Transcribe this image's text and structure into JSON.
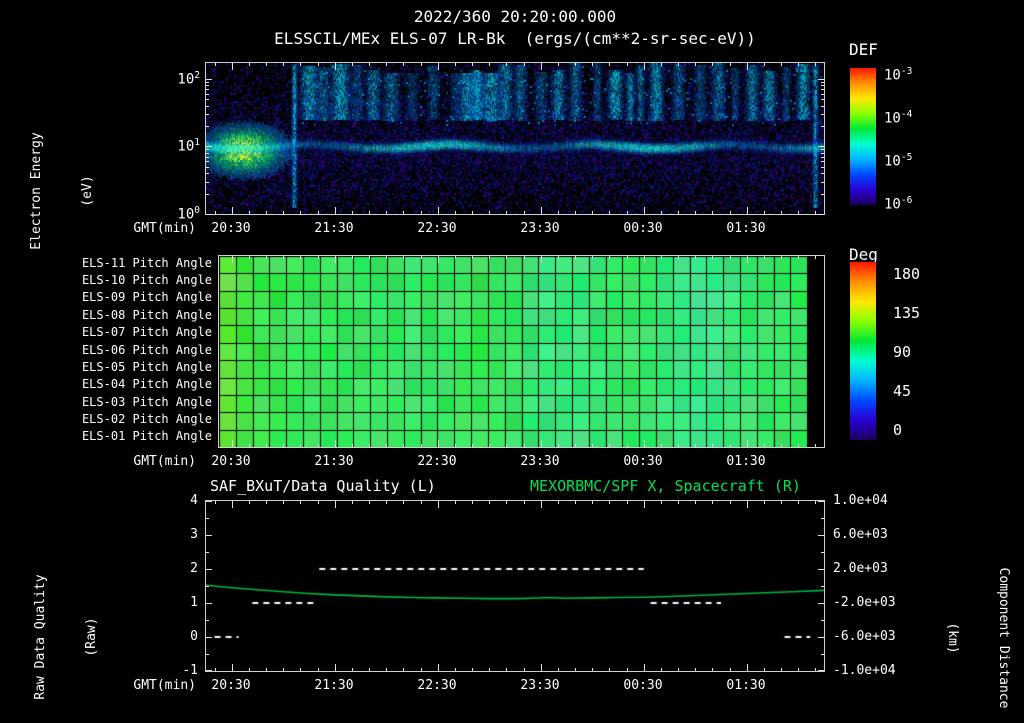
{
  "header": {
    "datetime": "2022/360 20:20:00.000",
    "title": "ELSSCIL/MEx ELS-07 LR-Bk  (ergs/(cm**2-sr-sec-eV))"
  },
  "colors": {
    "background": "#000000",
    "frame": "#d0d0d0",
    "text": "#ffffff",
    "title_green": "#00e050",
    "curve_green": "#00b840",
    "quality_white": "#ffffff"
  },
  "colorbar_gradient": [
    "#ff1500",
    "#ff9000",
    "#ffe800",
    "#8aff00",
    "#00e838",
    "#00ffd0",
    "#00b4ff",
    "#0048ff",
    "#2a00d0",
    "#1a0060"
  ],
  "time_axis": {
    "label": "GMT(min)",
    "span_min": 360,
    "minor_step_min": 10,
    "ticks": [
      {
        "label": "20:30",
        "min": 15
      },
      {
        "label": "21:30",
        "min": 75
      },
      {
        "label": "22:30",
        "min": 135
      },
      {
        "label": "23:30",
        "min": 195
      },
      {
        "label": "00:30",
        "min": 255
      },
      {
        "label": "01:30",
        "min": 315
      }
    ]
  },
  "chart_data": [
    {
      "id": "electron_energy_spectrogram",
      "type": "heatmap",
      "ylabel": [
        "Electron Energy",
        "(eV)"
      ],
      "y_scale": "log",
      "y_tick_exponents": [
        2,
        1,
        0
      ],
      "y_range_ev": [
        1,
        170
      ],
      "colorbar": {
        "title": "DEF",
        "scale": "log",
        "tick_exponents": [
          -3,
          -4,
          -5,
          -6
        ]
      },
      "features": {
        "background_noise_colors": [
          "#1a0070",
          "#001e8c",
          "#3c008c",
          "#000d40"
        ],
        "main_band": {
          "center_ev": 10,
          "color": "cyan"
        },
        "left_blob": {
          "t_range_min": [
            0,
            52
          ],
          "ev_range": [
            2.5,
            28
          ],
          "peak_t_min": 22,
          "peak_ev": 9,
          "color": "green-yellow"
        },
        "full_height_columns_min": [
          51,
          355
        ],
        "streak_ev_range": [
          25,
          140
        ],
        "streaks": [
          [
            60,
            4,
            0.8
          ],
          [
            68,
            3,
            0.6
          ],
          [
            78,
            4,
            0.85
          ],
          [
            88,
            3,
            0.5
          ],
          [
            97,
            3,
            0.7
          ],
          [
            108,
            4,
            0.6
          ],
          [
            120,
            3,
            0.45
          ],
          [
            132,
            3,
            0.5
          ],
          [
            145,
            3,
            0.4
          ],
          [
            152,
            4,
            0.75
          ],
          [
            158,
            3,
            0.8
          ],
          [
            166,
            4,
            0.85
          ],
          [
            174,
            3,
            0.7
          ],
          [
            183,
            3,
            0.6
          ],
          [
            195,
            3,
            0.5
          ],
          [
            205,
            3,
            0.75
          ],
          [
            215,
            3,
            0.6
          ],
          [
            228,
            2,
            0.5
          ],
          [
            238,
            3,
            0.9
          ],
          [
            247,
            2,
            0.7
          ],
          [
            253,
            2,
            0.6
          ],
          [
            262,
            3,
            0.8
          ],
          [
            275,
            3,
            0.55
          ],
          [
            288,
            3,
            0.5
          ],
          [
            298,
            3,
            0.65
          ],
          [
            308,
            2,
            0.5
          ],
          [
            318,
            3,
            0.7
          ],
          [
            328,
            3,
            0.75
          ],
          [
            338,
            2,
            0.5
          ],
          [
            348,
            3,
            0.8
          ]
        ]
      }
    },
    {
      "id": "pitch_angle_grid",
      "type": "heatmap",
      "rows": [
        "ELS-11 Pitch Angle",
        "ELS-10 Pitch Angle",
        "ELS-09 Pitch Angle",
        "ELS-08 Pitch Angle",
        "ELS-07 Pitch Angle",
        "ELS-06 Pitch Angle",
        "ELS-05 Pitch Angle",
        "ELS-04 Pitch Angle",
        "ELS-03 Pitch Angle",
        "ELS-02 Pitch Angle",
        "ELS-01 Pitch Angle"
      ],
      "colorbar": {
        "title": "Deg",
        "ticks": [
          180,
          135,
          90,
          45,
          0
        ],
        "range": [
          0,
          180
        ]
      },
      "column_values_deg": [
        112,
        103,
        99,
        97,
        96,
        95,
        95,
        94,
        94,
        93,
        93,
        92,
        93,
        94,
        95,
        96,
        95,
        93,
        90,
        88,
        87,
        88,
        90,
        92,
        93,
        91,
        88,
        86,
        85,
        86,
        88,
        90,
        92,
        93,
        94,
        null
      ]
    },
    {
      "id": "quality_and_distance",
      "type": "line",
      "title_left": "SAF_BXuT/Data Quality (L)",
      "title_right": "MEXORBMC/SPF X, Spacecraft (R)",
      "left_axis": {
        "label": [
          "Raw Data Quality",
          "(Raw)"
        ],
        "range": [
          -1,
          4
        ],
        "ticks": [
          4,
          3,
          2,
          1,
          0,
          -1
        ]
      },
      "right_axis": {
        "label": [
          "Component Distance",
          "(km)"
        ],
        "range": [
          -10000,
          10000
        ],
        "ticks": [
          "1.0e+04",
          "6.0e+03",
          "2.0e+03",
          "-2.0e+03",
          "-6.0e+03",
          "-1.0e+04"
        ]
      },
      "series": [
        {
          "name": "MEXORBMC/SPF X, Spacecraft",
          "style": "solid",
          "color_key": "curve_green",
          "t_min": [
            0,
            15,
            30,
            45,
            60,
            75,
            90,
            105,
            120,
            135,
            150,
            165,
            180,
            190,
            200,
            210,
            225,
            240,
            255,
            270,
            285,
            300,
            315,
            330,
            345,
            360
          ],
          "value": [
            1.52,
            1.45,
            1.39,
            1.33,
            1.28,
            1.24,
            1.21,
            1.18,
            1.16,
            1.15,
            1.14,
            1.13,
            1.13,
            1.14,
            1.16,
            1.14,
            1.15,
            1.16,
            1.17,
            1.19,
            1.22,
            1.25,
            1.28,
            1.31,
            1.34,
            1.37
          ]
        },
        {
          "name": "SAF_BXuT/Data Quality",
          "style": "dashed",
          "color_key": "quality_white",
          "segments": [
            {
              "value": 0,
              "t": [
                5,
                19
              ]
            },
            {
              "value": 1,
              "t": [
                27,
                63
              ]
            },
            {
              "value": 2,
              "t": [
                66,
                255
              ]
            },
            {
              "value": 1,
              "t": [
                259,
                300
              ]
            },
            {
              "value": 0,
              "t": [
                337,
                352
              ]
            }
          ]
        }
      ]
    }
  ]
}
